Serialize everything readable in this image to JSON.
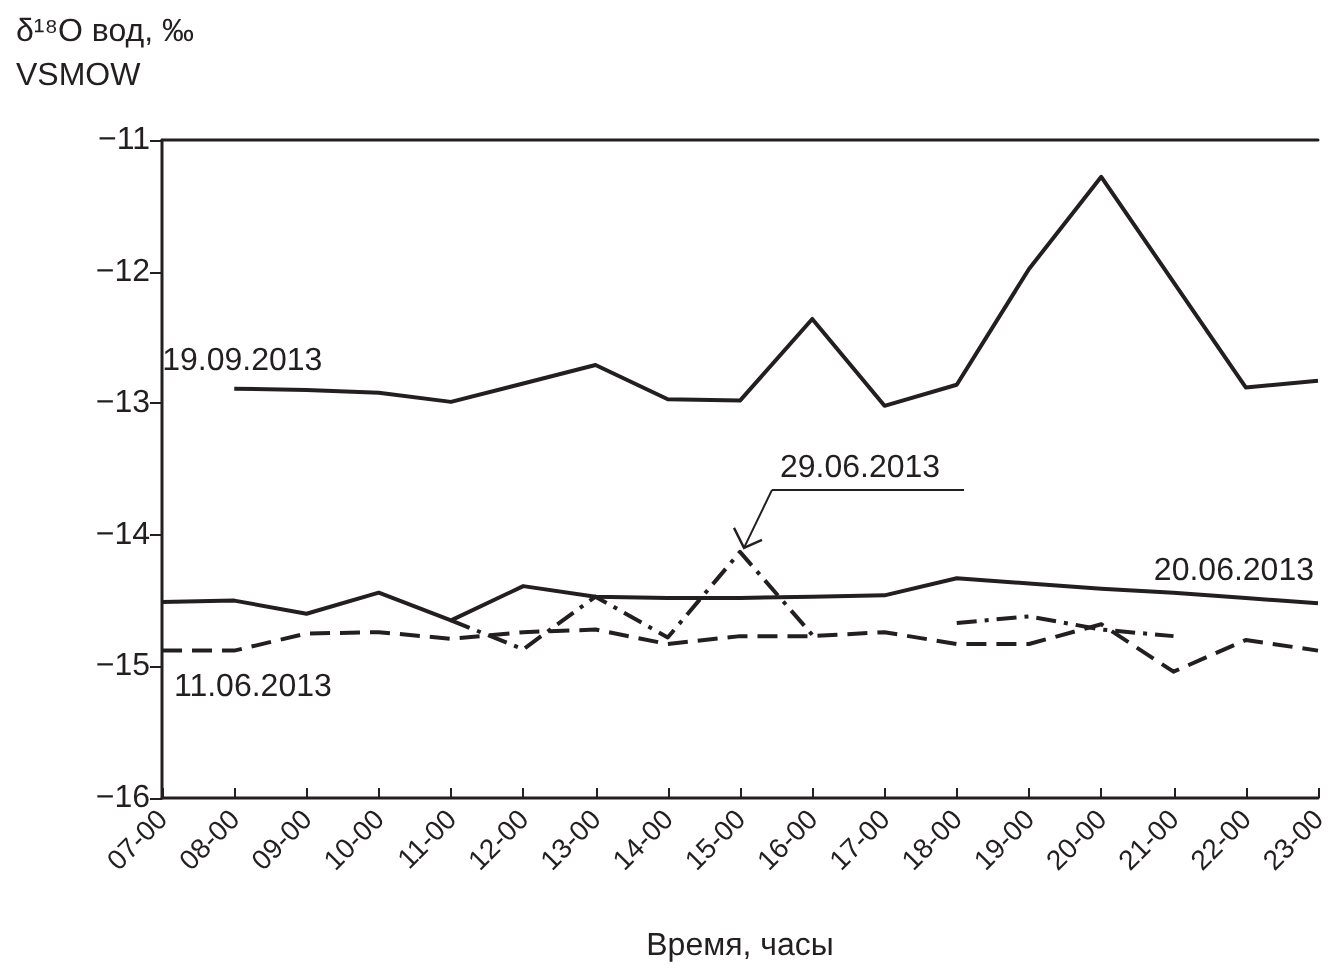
{
  "chart_data": {
    "type": "line",
    "ylabel": "δ¹⁸O вод, ‰\nVSMOW",
    "xlabel": "Время, часы",
    "categories": [
      "07-00",
      "08-00",
      "09-00",
      "10-00",
      "11-00",
      "12-00",
      "13-00",
      "14-00",
      "15-00",
      "16-00",
      "17-00",
      "18-00",
      "19-00",
      "20-00",
      "21-00",
      "22-00",
      "23-00"
    ],
    "series": [
      {
        "name": "19.09.2013",
        "color": "#231f20",
        "line_style": "solid",
        "values": [
          null,
          -12.89,
          -12.9,
          -12.92,
          -12.99,
          -12.85,
          -12.71,
          -12.97,
          -12.98,
          -12.36,
          -13.02,
          -12.86,
          -11.98,
          -11.28,
          -12.08,
          -12.88,
          -12.83
        ]
      },
      {
        "name": "20.06.2013",
        "color": "#231f20",
        "line_style": "solid",
        "values": [
          -14.51,
          -14.5,
          -14.6,
          -14.44,
          -14.65,
          -14.39,
          -14.47,
          -14.48,
          -14.48,
          -14.47,
          -14.46,
          -14.33,
          -14.37,
          -14.41,
          -14.44,
          -14.48,
          -14.52
        ]
      },
      {
        "name": "11.06.2013",
        "color": "#231f20",
        "line_style": "dashed",
        "values": [
          -14.88,
          -14.88,
          -14.75,
          -14.74,
          -14.79,
          -14.74,
          -14.72,
          -14.83,
          -14.77,
          -14.77,
          -14.74,
          -14.83,
          -14.83,
          -14.68,
          -15.04,
          -14.8,
          -14.88
        ]
      },
      {
        "name": "29.06.2013",
        "color": "#231f20",
        "line_style": "dashdot",
        "values": [
          null,
          null,
          null,
          null,
          -14.65,
          -14.87,
          -14.47,
          -14.78,
          -14.13,
          -14.76,
          null,
          -14.67,
          -14.62,
          -14.72,
          -14.77,
          null,
          null
        ]
      }
    ],
    "ylim": [
      -16,
      -11
    ],
    "yticks": [
      -16,
      -15,
      -14,
      -13,
      -12,
      -11
    ],
    "grid": false,
    "legend": false,
    "marker": "none"
  }
}
